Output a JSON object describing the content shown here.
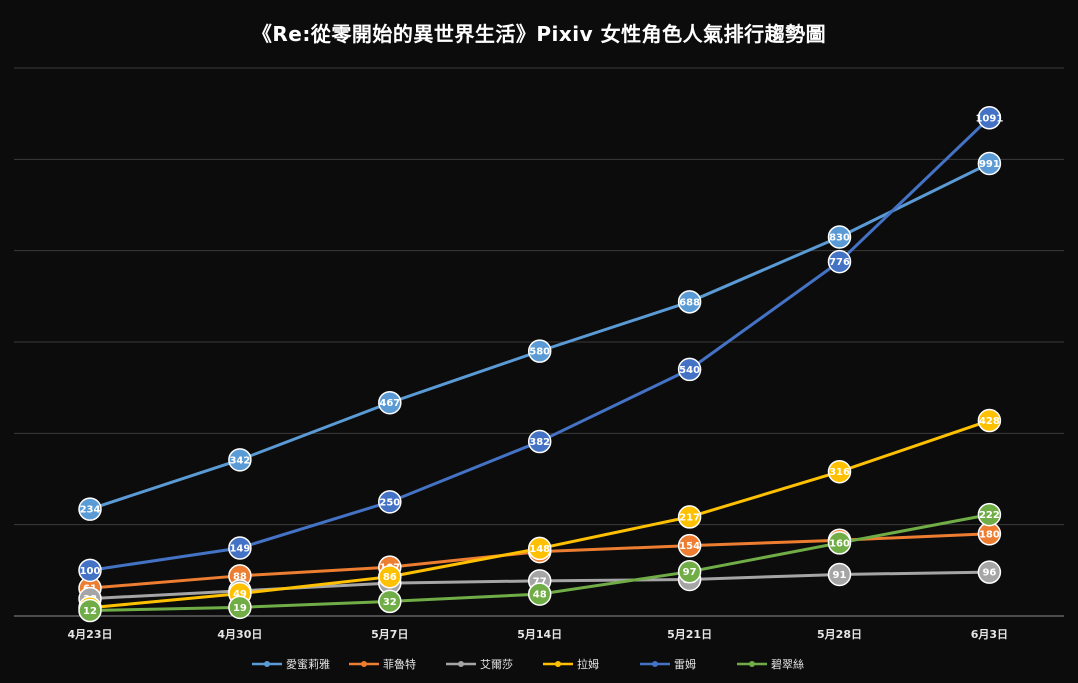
{
  "chart_data": {
    "type": "line",
    "title": "《Re:從零開始的異世界生活》Pixiv 女性角色人氣排行趨勢圖",
    "xlabel": "",
    "ylabel": "",
    "categories": [
      "4月23日",
      "4月30日",
      "5月7日",
      "5月14日",
      "5月21日",
      "5月28日",
      "6月3日"
    ],
    "ylim": [
      0,
      1200
    ],
    "grid": true,
    "legend_position": "bottom",
    "series": [
      {
        "name": "愛蜜莉雅",
        "color": "#5b9bd5",
        "values": [
          234,
          342,
          467,
          580,
          688,
          830,
          991
        ]
      },
      {
        "name": "菲魯特",
        "color": "#ed7d31",
        "values": [
          61,
          88,
          107,
          141,
          154,
          166,
          180
        ]
      },
      {
        "name": "艾爾莎",
        "color": "#a5a5a5",
        "values": [
          38,
          55,
          72,
          77,
          80,
          91,
          96
        ]
      },
      {
        "name": "拉姆",
        "color": "#ffc000",
        "values": [
          18,
          49,
          86,
          148,
          217,
          316,
          428
        ]
      },
      {
        "name": "雷姆",
        "color": "#4472c4",
        "values": [
          100,
          149,
          250,
          382,
          540,
          776,
          1091
        ]
      },
      {
        "name": "碧翠絲",
        "color": "#70ad47",
        "values": [
          12,
          19,
          32,
          48,
          97,
          160,
          222
        ]
      }
    ]
  }
}
